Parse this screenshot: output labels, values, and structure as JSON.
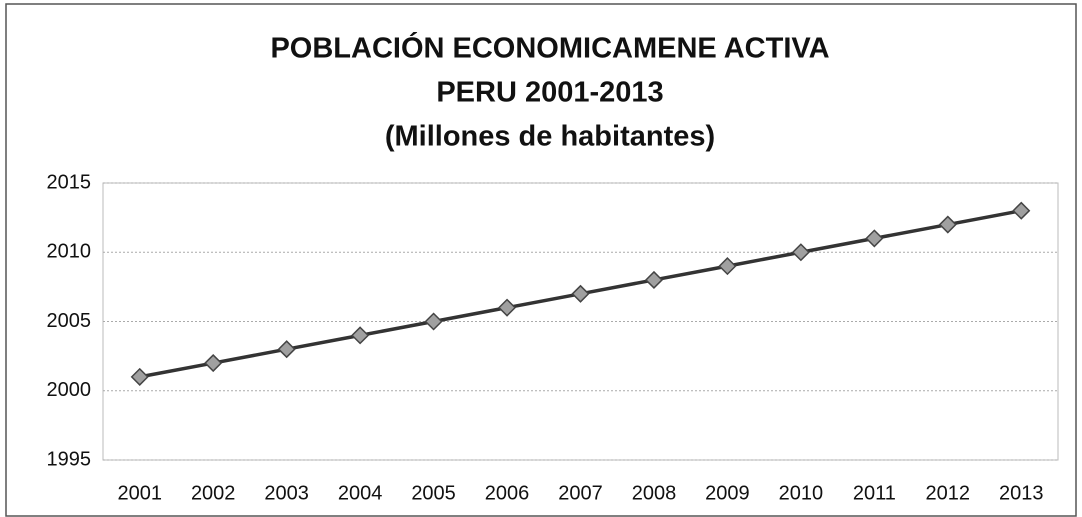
{
  "chart_data": {
    "type": "line",
    "title": [
      "POBLACIÓN ECONOMICAMENE ACTIVA",
      "PERU 2001-2013",
      "(Millones de habitantes)"
    ],
    "categories": [
      "2001",
      "2002",
      "2003",
      "2004",
      "2005",
      "2006",
      "2007",
      "2008",
      "2009",
      "2010",
      "2011",
      "2012",
      "2013"
    ],
    "values": [
      2001,
      2002,
      2003,
      2004,
      2005,
      2006,
      2007,
      2008,
      2009,
      2010,
      2011,
      2012,
      2013
    ],
    "color": "#333333",
    "marker_color": "#a0a0a0",
    "ylim": [
      1995,
      2015
    ],
    "yticks": [
      1995,
      2000,
      2005,
      2010,
      2015
    ],
    "grid": true
  }
}
